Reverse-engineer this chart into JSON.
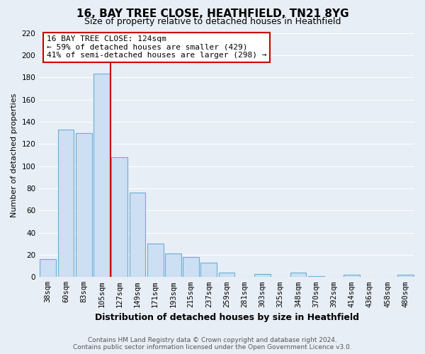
{
  "title": "16, BAY TREE CLOSE, HEATHFIELD, TN21 8YG",
  "subtitle": "Size of property relative to detached houses in Heathfield",
  "xlabel": "Distribution of detached houses by size in Heathfield",
  "ylabel": "Number of detached properties",
  "bar_labels": [
    "38sqm",
    "60sqm",
    "83sqm",
    "105sqm",
    "127sqm",
    "149sqm",
    "171sqm",
    "193sqm",
    "215sqm",
    "237sqm",
    "259sqm",
    "281sqm",
    "303sqm",
    "325sqm",
    "348sqm",
    "370sqm",
    "392sqm",
    "414sqm",
    "436sqm",
    "458sqm",
    "480sqm"
  ],
  "bar_values": [
    16,
    133,
    130,
    183,
    108,
    76,
    30,
    21,
    18,
    13,
    4,
    0,
    3,
    0,
    4,
    1,
    0,
    2,
    0,
    0,
    2
  ],
  "bar_facecolor": "#ccdff3",
  "bar_edgecolor": "#6aaed6",
  "vline_after_index": 3,
  "vline_color": "#cc0000",
  "ylim": [
    0,
    220
  ],
  "yticks": [
    0,
    20,
    40,
    60,
    80,
    100,
    120,
    140,
    160,
    180,
    200,
    220
  ],
  "annotation_lines": [
    "16 BAY TREE CLOSE: 124sqm",
    "← 59% of detached houses are smaller (429)",
    "41% of semi-detached houses are larger (298) →"
  ],
  "annotation_box_facecolor": "#ffffff",
  "annotation_box_edgecolor": "#cc0000",
  "footnote": "Contains HM Land Registry data © Crown copyright and database right 2024.\nContains public sector information licensed under the Open Government Licence v3.0.",
  "bg_color": "#e8eef5",
  "plot_bg_color": "#e8eef5",
  "grid_color": "#ffffff",
  "title_fontsize": 11,
  "subtitle_fontsize": 9,
  "xlabel_fontsize": 9,
  "ylabel_fontsize": 8,
  "tick_fontsize": 7.5,
  "footnote_fontsize": 6.5
}
